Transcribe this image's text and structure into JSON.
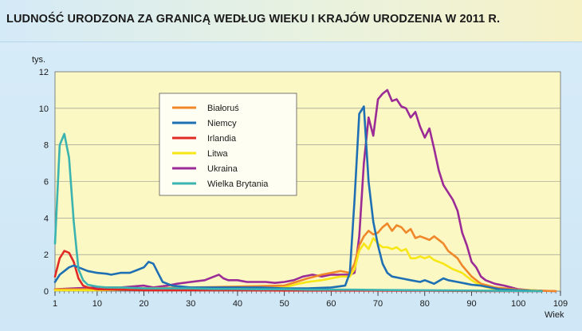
{
  "title": "LUDNOŚĆ URODZONA ZA GRANICĄ WEDŁUG WIEKU I KRAJÓW URODZENIA W 2011 R.",
  "chart_data": {
    "type": "line",
    "title": "LUDNOŚĆ URODZONA ZA GRANICĄ WEDŁUG WIEKU I KRAJÓW URODZENIA W 2011 R.",
    "ylabel": "tys.",
    "xlabel": "Wiek",
    "xlim": [
      1,
      109
    ],
    "ylim": [
      0,
      12
    ],
    "x_ticks": [
      1,
      10,
      20,
      30,
      40,
      50,
      60,
      70,
      80,
      90,
      100,
      109
    ],
    "y_ticks": [
      0,
      2,
      4,
      6,
      8,
      10,
      12
    ],
    "grid": "horizontal",
    "legend_position": "upper-left-inside",
    "background_color": "#fbf8c3",
    "series": [
      {
        "name": "Białoruś",
        "color": "#f0882a",
        "points": [
          [
            1,
            0.1
          ],
          [
            10,
            0.1
          ],
          [
            20,
            0.15
          ],
          [
            30,
            0.2
          ],
          [
            40,
            0.25
          ],
          [
            50,
            0.3
          ],
          [
            55,
            0.7
          ],
          [
            58,
            0.9
          ],
          [
            60,
            1.0
          ],
          [
            62,
            1.1
          ],
          [
            64,
            1.0
          ],
          [
            65,
            1.5
          ],
          [
            66,
            2.5
          ],
          [
            67,
            3.0
          ],
          [
            68,
            3.3
          ],
          [
            69,
            3.1
          ],
          [
            70,
            3.2
          ],
          [
            71,
            3.5
          ],
          [
            72,
            3.7
          ],
          [
            73,
            3.3
          ],
          [
            74,
            3.6
          ],
          [
            75,
            3.5
          ],
          [
            76,
            3.2
          ],
          [
            77,
            3.4
          ],
          [
            78,
            2.9
          ],
          [
            79,
            3.0
          ],
          [
            80,
            2.9
          ],
          [
            81,
            2.8
          ],
          [
            82,
            3.0
          ],
          [
            83,
            2.8
          ],
          [
            84,
            2.6
          ],
          [
            85,
            2.2
          ],
          [
            86,
            2.0
          ],
          [
            87,
            1.8
          ],
          [
            88,
            1.4
          ],
          [
            89,
            1.1
          ],
          [
            90,
            0.8
          ],
          [
            92,
            0.4
          ],
          [
            95,
            0.2
          ],
          [
            100,
            0.08
          ],
          [
            105,
            0.02
          ],
          [
            108,
            0.0
          ]
        ]
      },
      {
        "name": "Niemcy",
        "color": "#1f6fb4",
        "points": [
          [
            1,
            0.5
          ],
          [
            2,
            0.9
          ],
          [
            3,
            1.1
          ],
          [
            4,
            1.3
          ],
          [
            5,
            1.4
          ],
          [
            6,
            1.3
          ],
          [
            8,
            1.1
          ],
          [
            10,
            1.0
          ],
          [
            12,
            0.95
          ],
          [
            13,
            0.9
          ],
          [
            15,
            1.0
          ],
          [
            17,
            1.0
          ],
          [
            19,
            1.2
          ],
          [
            20,
            1.3
          ],
          [
            21,
            1.6
          ],
          [
            22,
            1.5
          ],
          [
            23,
            1.0
          ],
          [
            24,
            0.5
          ],
          [
            26,
            0.3
          ],
          [
            28,
            0.25
          ],
          [
            30,
            0.2
          ],
          [
            35,
            0.2
          ],
          [
            40,
            0.2
          ],
          [
            45,
            0.2
          ],
          [
            50,
            0.15
          ],
          [
            55,
            0.15
          ],
          [
            60,
            0.2
          ],
          [
            63,
            0.3
          ],
          [
            64,
            1.0
          ],
          [
            65,
            5.0
          ],
          [
            66,
            9.7
          ],
          [
            67,
            10.1
          ],
          [
            68,
            6.0
          ],
          [
            69,
            3.8
          ],
          [
            70,
            2.5
          ],
          [
            71,
            1.5
          ],
          [
            72,
            1.0
          ],
          [
            73,
            0.8
          ],
          [
            75,
            0.7
          ],
          [
            77,
            0.6
          ],
          [
            79,
            0.5
          ],
          [
            80,
            0.6
          ],
          [
            81,
            0.5
          ],
          [
            82,
            0.4
          ],
          [
            84,
            0.7
          ],
          [
            85,
            0.6
          ],
          [
            87,
            0.5
          ],
          [
            89,
            0.4
          ],
          [
            90,
            0.35
          ],
          [
            92,
            0.3
          ],
          [
            94,
            0.2
          ],
          [
            96,
            0.1
          ],
          [
            100,
            0.05
          ],
          [
            105,
            0.0
          ]
        ]
      },
      {
        "name": "Irlandia",
        "color": "#e02a26",
        "points": [
          [
            1,
            0.8
          ],
          [
            2,
            1.8
          ],
          [
            3,
            2.2
          ],
          [
            4,
            2.1
          ],
          [
            5,
            1.6
          ],
          [
            6,
            0.7
          ],
          [
            7,
            0.3
          ],
          [
            8,
            0.2
          ],
          [
            10,
            0.1
          ],
          [
            15,
            0.08
          ],
          [
            20,
            0.05
          ],
          [
            30,
            0.05
          ],
          [
            40,
            0.05
          ],
          [
            50,
            0.03
          ],
          [
            60,
            0.03
          ],
          [
            70,
            0.03
          ],
          [
            80,
            0.02
          ],
          [
            90,
            0.01
          ],
          [
            100,
            0.0
          ],
          [
            105,
            0.0
          ]
        ]
      },
      {
        "name": "Litwa",
        "color": "#f7e616",
        "points": [
          [
            1,
            0.05
          ],
          [
            10,
            0.05
          ],
          [
            20,
            0.1
          ],
          [
            30,
            0.1
          ],
          [
            40,
            0.1
          ],
          [
            50,
            0.2
          ],
          [
            53,
            0.4
          ],
          [
            55,
            0.5
          ],
          [
            58,
            0.6
          ],
          [
            60,
            0.7
          ],
          [
            62,
            0.8
          ],
          [
            64,
            0.8
          ],
          [
            65,
            1.2
          ],
          [
            66,
            2.2
          ],
          [
            67,
            2.6
          ],
          [
            68,
            2.3
          ],
          [
            69,
            2.9
          ],
          [
            70,
            2.6
          ],
          [
            71,
            2.4
          ],
          [
            72,
            2.4
          ],
          [
            73,
            2.3
          ],
          [
            74,
            2.4
          ],
          [
            75,
            2.2
          ],
          [
            76,
            2.3
          ],
          [
            77,
            1.8
          ],
          [
            78,
            1.8
          ],
          [
            79,
            1.9
          ],
          [
            80,
            1.8
          ],
          [
            81,
            1.9
          ],
          [
            82,
            1.7
          ],
          [
            84,
            1.5
          ],
          [
            86,
            1.2
          ],
          [
            88,
            1.0
          ],
          [
            90,
            0.6
          ],
          [
            92,
            0.3
          ],
          [
            95,
            0.1
          ],
          [
            100,
            0.05
          ],
          [
            103,
            0.05
          ],
          [
            105,
            0.0
          ]
        ]
      },
      {
        "name": "Ukraina",
        "color": "#9b2b96",
        "points": [
          [
            1,
            0.1
          ],
          [
            5,
            0.15
          ],
          [
            10,
            0.2
          ],
          [
            15,
            0.2
          ],
          [
            20,
            0.3
          ],
          [
            22,
            0.2
          ],
          [
            25,
            0.3
          ],
          [
            27,
            0.4
          ],
          [
            30,
            0.5
          ],
          [
            33,
            0.6
          ],
          [
            35,
            0.8
          ],
          [
            36,
            0.9
          ],
          [
            37,
            0.7
          ],
          [
            38,
            0.6
          ],
          [
            40,
            0.6
          ],
          [
            42,
            0.5
          ],
          [
            44,
            0.5
          ],
          [
            46,
            0.5
          ],
          [
            48,
            0.45
          ],
          [
            50,
            0.5
          ],
          [
            52,
            0.6
          ],
          [
            54,
            0.8
          ],
          [
            56,
            0.9
          ],
          [
            58,
            0.8
          ],
          [
            60,
            0.9
          ],
          [
            62,
            0.9
          ],
          [
            64,
            0.9
          ],
          [
            65,
            1.0
          ],
          [
            66,
            3.0
          ],
          [
            67,
            7.0
          ],
          [
            68,
            9.5
          ],
          [
            69,
            8.5
          ],
          [
            70,
            10.5
          ],
          [
            71,
            10.8
          ],
          [
            72,
            11.0
          ],
          [
            73,
            10.4
          ],
          [
            74,
            10.5
          ],
          [
            75,
            10.1
          ],
          [
            76,
            10.0
          ],
          [
            77,
            9.5
          ],
          [
            78,
            9.8
          ],
          [
            79,
            9.0
          ],
          [
            80,
            8.4
          ],
          [
            81,
            8.9
          ],
          [
            82,
            7.8
          ],
          [
            83,
            6.6
          ],
          [
            84,
            5.8
          ],
          [
            85,
            5.4
          ],
          [
            86,
            5.0
          ],
          [
            87,
            4.4
          ],
          [
            88,
            3.2
          ],
          [
            89,
            2.5
          ],
          [
            90,
            1.6
          ],
          [
            91,
            1.3
          ],
          [
            92,
            0.8
          ],
          [
            93,
            0.6
          ],
          [
            95,
            0.4
          ],
          [
            97,
            0.3
          ],
          [
            100,
            0.1
          ],
          [
            103,
            0.05
          ],
          [
            105,
            0.02
          ],
          [
            108,
            0.0
          ]
        ]
      },
      {
        "name": "Wielka Brytania",
        "color": "#3bb3b0",
        "points": [
          [
            1,
            2.6
          ],
          [
            2,
            8.0
          ],
          [
            3,
            8.6
          ],
          [
            4,
            7.3
          ],
          [
            5,
            3.8
          ],
          [
            6,
            1.2
          ],
          [
            7,
            0.6
          ],
          [
            8,
            0.35
          ],
          [
            9,
            0.3
          ],
          [
            10,
            0.25
          ],
          [
            12,
            0.2
          ],
          [
            15,
            0.2
          ],
          [
            20,
            0.15
          ],
          [
            25,
            0.15
          ],
          [
            30,
            0.15
          ],
          [
            35,
            0.12
          ],
          [
            40,
            0.12
          ],
          [
            45,
            0.1
          ],
          [
            50,
            0.1
          ],
          [
            55,
            0.08
          ],
          [
            60,
            0.08
          ],
          [
            65,
            0.08
          ],
          [
            70,
            0.06
          ],
          [
            80,
            0.05
          ],
          [
            90,
            0.03
          ],
          [
            100,
            0.01
          ],
          [
            105,
            0.0
          ]
        ]
      }
    ]
  }
}
